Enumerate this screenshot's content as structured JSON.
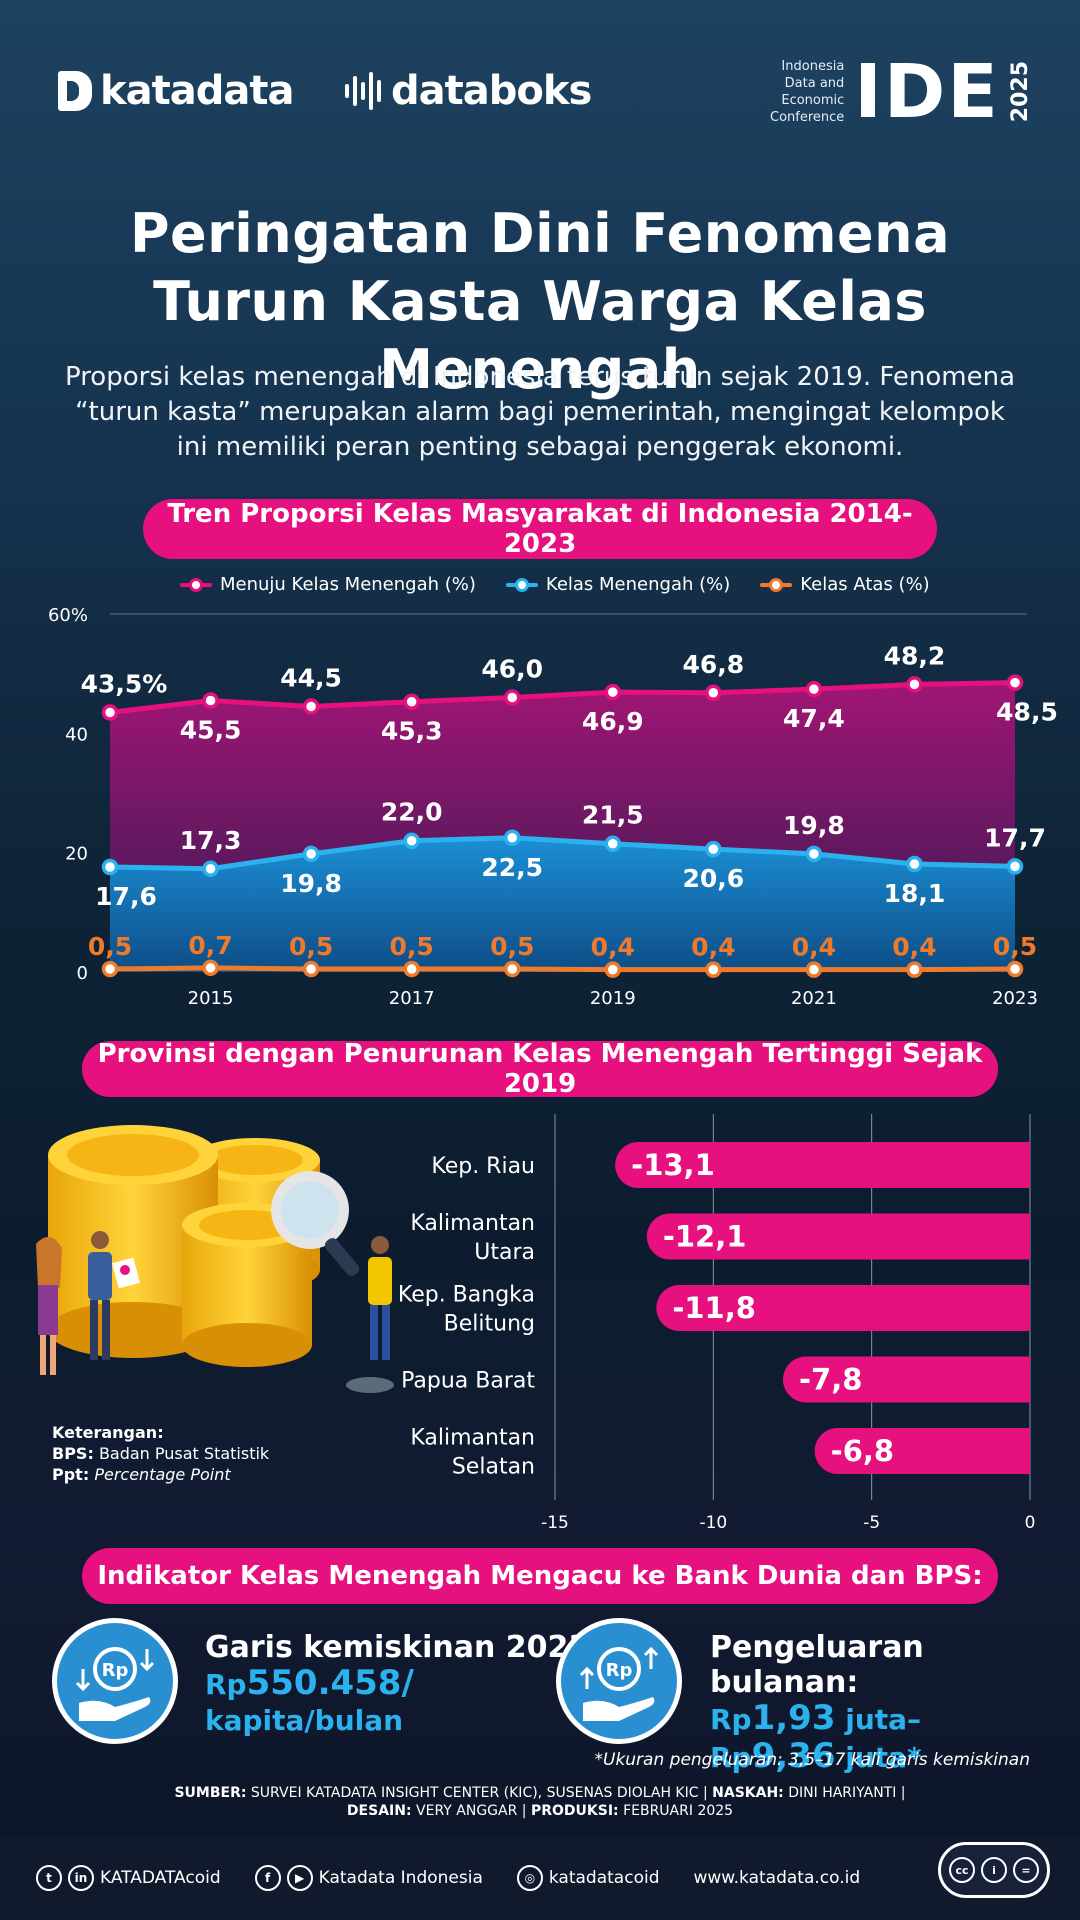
{
  "header": {
    "katadata_logo": "katadata",
    "databoks_logo": "databoks",
    "ide_lines": [
      "Indonesia",
      "Data and",
      "Economic",
      "Conference"
    ],
    "ide_big": "IDE",
    "ide_year": "2025"
  },
  "title_line1": "Peringatan Dini Fenomena",
  "title_line2": "Turun Kasta Warga Kelas Menengah",
  "subtitle_line1": "Proporsi kelas menengah di Indonesia terus turun sejak 2019. Fenomena",
  "subtitle_line2": "“turun kasta” merupakan alarm bagi pemerintah, mengingat kelompok",
  "subtitle_line3": "ini memiliki peran penting sebagai penggerak ekonomi.",
  "section1_title": "Tren Proporsi Kelas Masyarakat di Indonesia 2014-2023",
  "section2_title": "Provinsi dengan Penurunan Kelas Menengah Tertinggi Sejak 2019",
  "section3_title": "Indikator Kelas Menengah Mengacu ke Bank Dunia dan BPS:",
  "colors": {
    "pink": "#e6117f",
    "blue": "#2bb2ee",
    "orange": "#f07a2b"
  },
  "chart_data": [
    {
      "type": "line",
      "x": [
        2014,
        2015,
        2016,
        2017,
        2018,
        2019,
        2020,
        2021,
        2022,
        2023
      ],
      "x_tick_labels": [
        "2015",
        "2017",
        "2019",
        "2021",
        "2023"
      ],
      "y_tick_labels": [
        "60%",
        "40",
        "20",
        "0"
      ],
      "ylim": [
        0,
        60
      ],
      "grid": true,
      "legend_position": "top-center",
      "series": [
        {
          "name": "Menuju Kelas Menengah (%)",
          "color": "#e6117f",
          "values": [
            43.5,
            45.5,
            44.5,
            45.3,
            46.0,
            46.9,
            46.8,
            47.4,
            48.2,
            48.5
          ],
          "labels": [
            "43,5%",
            "45,5",
            "44,5",
            "45,3",
            "46,0",
            "46,9",
            "46,8",
            "47,4",
            "48,2",
            "48,5"
          ]
        },
        {
          "name": "Kelas Menengah (%)",
          "color": "#2bb2ee",
          "values": [
            17.6,
            17.3,
            19.8,
            22.0,
            22.5,
            21.5,
            20.6,
            19.8,
            18.1,
            17.7
          ],
          "labels": [
            "17,6",
            "17,3",
            "19,8",
            "22,0",
            "22,5",
            "21,5",
            "20,6",
            "19,8",
            "18,1",
            "17,7"
          ]
        },
        {
          "name": "Kelas Atas (%)",
          "color": "#f07a2b",
          "values": [
            0.5,
            0.7,
            0.5,
            0.5,
            0.5,
            0.4,
            0.4,
            0.4,
            0.4,
            0.5
          ],
          "labels": [
            "0,5",
            "0,7",
            "0,5",
            "0,5",
            "0,5",
            "0,4",
            "0,4",
            "0,4",
            "0,4",
            "0,5"
          ]
        }
      ]
    },
    {
      "type": "bar",
      "orientation": "horizontal",
      "categories": [
        [
          "Kep. Riau"
        ],
        [
          "Kalimantan",
          "Utara"
        ],
        [
          "Kep. Bangka",
          "Belitung"
        ],
        [
          "Papua Barat"
        ],
        [
          "Kalimantan",
          "Selatan"
        ]
      ],
      "values": [
        -13.1,
        -12.1,
        -11.8,
        -7.8,
        -6.8
      ],
      "labels": [
        "-13,1",
        "-12,1",
        "-11,8",
        "-7,8",
        "-6,8"
      ],
      "xlim": [
        -15,
        0
      ],
      "x_tick_values": [
        -15,
        -10,
        -5,
        0
      ],
      "x_tick_labels": [
        "-15",
        "-10",
        "-5",
        "0"
      ],
      "color": "#e6117f"
    }
  ],
  "notes": {
    "heading": "Keterangan:",
    "bps_key": "BPS:",
    "bps_value": "Badan Pusat Statistik",
    "ppt_key": "Ppt:",
    "ppt_value": "Percentage Point"
  },
  "indicators": {
    "left_head": "Garis kemiskinan 2023:",
    "left_rp": "Rp",
    "left_value": "550.458/",
    "left_unit": "kapita/bulan",
    "right_head": "Pengeluaran bulanan:",
    "right_rp1": "Rp",
    "right_val1": "1,93",
    "right_unit1": "juta–",
    "right_rp2": "Rp",
    "right_val2": "9,36",
    "right_unit2": "juta*",
    "icon_text": "Rp",
    "footnote": "*Ukuran pengeluaran: 3,5–17 kali garis kemiskinan"
  },
  "sources": {
    "sumber_key": "SUMBER:",
    "sumber_value": "SURVEI KATADATA INSIGHT CENTER (KIC), SUSENAS DIOLAH KIC |",
    "naskah_key": "NASKAH:",
    "naskah_value": "DINI HARIYANTI |",
    "desain_key": "DESAIN:",
    "desain_value": "VERY ANGGAR |",
    "produksi_key": "PRODUKSI:",
    "produksi_value": "FEBRUARI 2025"
  },
  "footer": {
    "twitter_icon": "twitter-icon",
    "handle1": "KATADATAcoid",
    "handle2": "Katadata Indonesia",
    "handle3": "katadatacoid",
    "website": "www.katadata.co.id",
    "cc_labels": [
      "cc",
      "i",
      "="
    ]
  }
}
